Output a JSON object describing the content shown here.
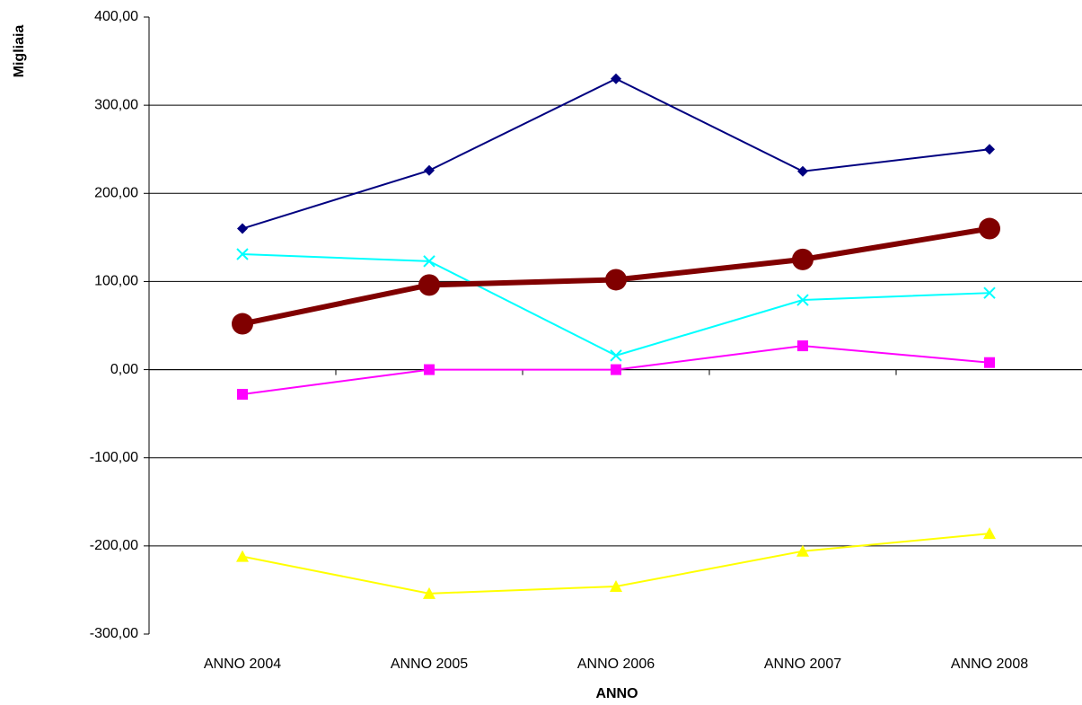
{
  "chart_data": {
    "type": "line",
    "x_label": "ANNO",
    "y_label": "Migliaia",
    "categories": [
      "ANNO 2004",
      "ANNO 2005",
      "ANNO 2006",
      "ANNO 2007",
      "ANNO 2008"
    ],
    "series": [
      {
        "color": "#000080",
        "marker": "diamond",
        "values": [
          160,
          226,
          330,
          225,
          250
        ]
      },
      {
        "color": "#ff00ff",
        "marker": "square",
        "values": [
          -28,
          0,
          0,
          27,
          8
        ]
      },
      {
        "color": "#ffff00",
        "marker": "triangle",
        "values": [
          -212,
          -254,
          -246,
          -206,
          -186
        ]
      },
      {
        "color": "#00ffff",
        "marker": "x",
        "values": [
          131,
          123,
          16,
          79,
          87
        ]
      },
      {
        "color": "#800000",
        "marker": "circle",
        "values": [
          52,
          96,
          102,
          125,
          160
        ]
      }
    ],
    "ylim": [
      -300,
      400
    ],
    "yticks": [
      {
        "value": -300,
        "label": "-300,00"
      },
      {
        "value": -200,
        "label": "-200,00"
      },
      {
        "value": -100,
        "label": "-100,00"
      },
      {
        "value": 0,
        "label": "0,00"
      },
      {
        "value": 100,
        "label": "100,00"
      },
      {
        "value": 200,
        "label": "200,00"
      },
      {
        "value": 300,
        "label": "300,00"
      },
      {
        "value": 400,
        "label": "400,00"
      }
    ],
    "grid": true
  }
}
